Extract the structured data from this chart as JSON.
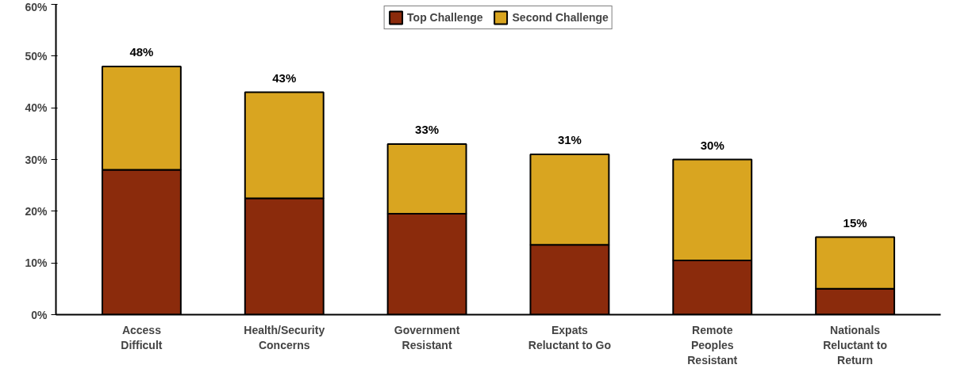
{
  "chart_data": {
    "type": "bar",
    "stacked": true,
    "categories": [
      "Access\nDifficult",
      "Health/Security\nConcerns",
      "Government\nResistant",
      "Expats\nReluctant to Go",
      "Remote\nPeoples\nResistant",
      "Nationals\nReluctant to\nReturn"
    ],
    "series": [
      {
        "name": "Top Challenge",
        "color": "#8b2b0c",
        "values": [
          28,
          22.5,
          19.5,
          13.5,
          10.5,
          5
        ]
      },
      {
        "name": "Second Challenge",
        "color": "#d9a520",
        "values": [
          20,
          20.5,
          13.5,
          17.5,
          19.5,
          10
        ]
      }
    ],
    "totals": [
      "48%",
      "43%",
      "33%",
      "31%",
      "30%",
      "15%"
    ],
    "ylim": [
      0,
      60
    ],
    "yticks": [
      {
        "value": 0,
        "label": "0%"
      },
      {
        "value": 10,
        "label": "10%"
      },
      {
        "value": 20,
        "label": "20%"
      },
      {
        "value": 30,
        "label": "30%"
      },
      {
        "value": 40,
        "label": "40%"
      },
      {
        "value": 50,
        "label": "50%"
      },
      {
        "value": 60,
        "label": "60%"
      }
    ],
    "legend": "top center",
    "grid": false
  }
}
